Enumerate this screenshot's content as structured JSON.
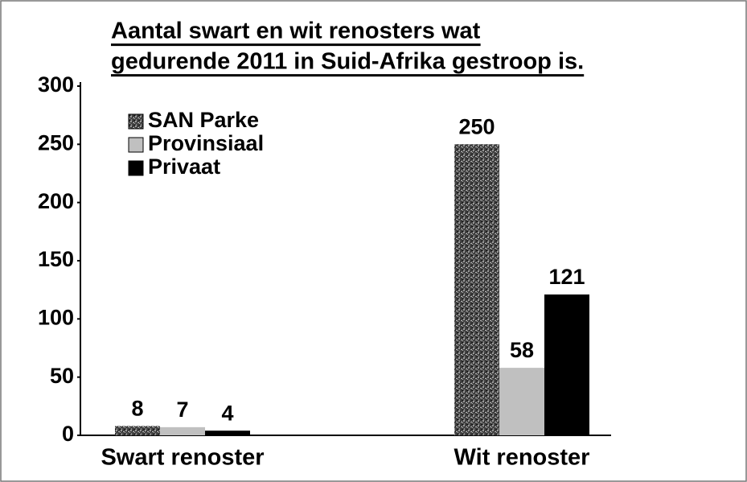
{
  "chart_data": {
    "type": "bar",
    "title": [
      "Aantal swart en wit renosters wat",
      "gedurende 2011 in Suid-Afrika gestroop is."
    ],
    "categories": [
      "Swart renoster",
      "Wit renoster"
    ],
    "series": [
      {
        "name": "SAN Parke",
        "color": "#555555",
        "values": [
          8,
          250
        ]
      },
      {
        "name": "Provinsiaal",
        "color": "#c0c0c0",
        "values": [
          7,
          58
        ]
      },
      {
        "name": "Privaat",
        "color": "#000000",
        "values": [
          4,
          121
        ]
      }
    ],
    "ylim": [
      0,
      300
    ],
    "yticks": [
      0,
      50,
      100,
      150,
      200,
      250,
      300
    ],
    "grid": false
  }
}
